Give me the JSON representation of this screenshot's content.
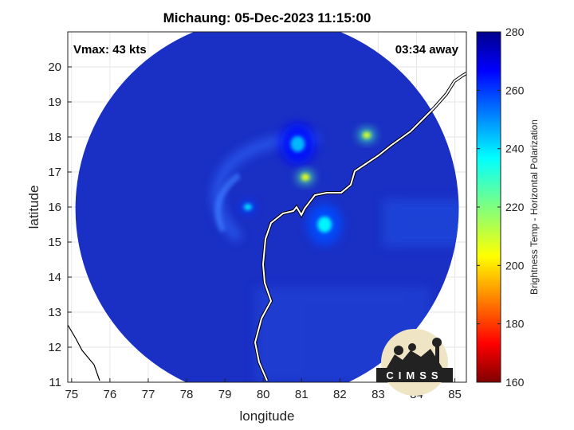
{
  "chart_data": {
    "type": "heatmap",
    "title": "Michaung: 05-Dec-2023 11:15:00",
    "xlabel": "longitude",
    "ylabel": "latitude",
    "xlim": [
      74.9,
      85.3
    ],
    "ylim": [
      11,
      21
    ],
    "xticks": [
      "75",
      "76",
      "77",
      "78",
      "79",
      "80",
      "81",
      "82",
      "83",
      "84",
      "85"
    ],
    "yticks": [
      "11",
      "12",
      "13",
      "14",
      "15",
      "16",
      "17",
      "18",
      "19",
      "20"
    ],
    "grid": true,
    "annotations": {
      "vmax": "Vmax: 43 kts",
      "time_away": "03:34 away"
    },
    "colorbar": {
      "label": "Brightness Temp - Horizontal Polarization",
      "range": [
        160,
        280
      ],
      "ticks": [
        "160",
        "180",
        "200",
        "220",
        "240",
        "260",
        "280"
      ],
      "colormap": "jet"
    },
    "swath": {
      "center_lon": 80.1,
      "center_lat": 15.95,
      "radius_deg": 5.0
    },
    "features": [
      {
        "name": "cloud band",
        "lon": 80.9,
        "lat": 17.8,
        "value": 245
      },
      {
        "name": "warm spot",
        "lon": 81.1,
        "lat": 16.85,
        "value": 205
      },
      {
        "name": "warm spot",
        "lon": 82.7,
        "lat": 18.05,
        "value": 208
      },
      {
        "name": "cyclone core",
        "lon": 79.6,
        "lat": 16.0,
        "value": 240
      },
      {
        "name": "coastal cells",
        "lon": 81.6,
        "lat": 15.5,
        "value": 238
      }
    ]
  },
  "logo": {
    "text": "CIMSS"
  },
  "colors": {
    "background": "#1a2fc4",
    "coast": "#ffffff",
    "land_outline": "#000000"
  }
}
